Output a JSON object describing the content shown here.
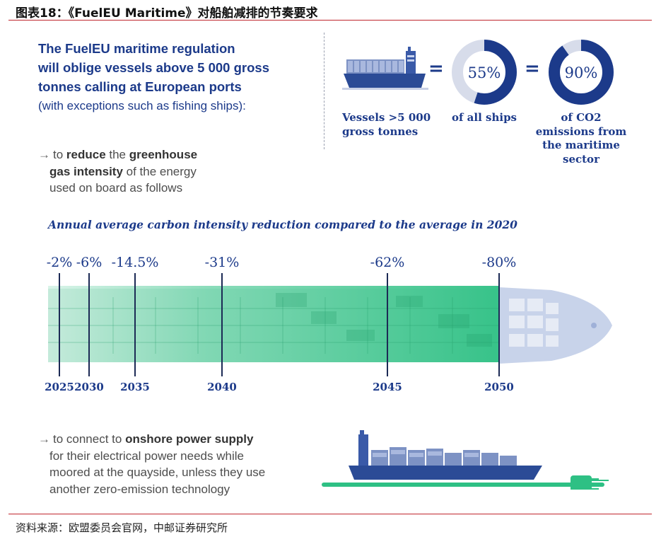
{
  "figure_title": "图表18：《FuelEU Maritime》对船舶减排的节奏要求",
  "intro": {
    "line1": "The FuelEU maritime regulation",
    "line2": "will oblige vessels above 5 000 gross",
    "line3": "tonnes calling at European ports",
    "line4": "(with exceptions such as fishing ships):"
  },
  "bullet1": {
    "arrow": "→",
    "pre": "to ",
    "bold1": "reduce",
    "mid": " the ",
    "bold2": "greenhouse",
    "bold3": "gas intensity",
    "post": " of the energy",
    "line3": "used on board as follows"
  },
  "stats": {
    "equals": "=",
    "vessels_caption": [
      "Vessels  >5 000",
      "gross tonnes"
    ],
    "ships_ring": {
      "label": "55%",
      "value": 55,
      "caption": "of all ships"
    },
    "emissions_ring": {
      "label": "90%",
      "value": 90,
      "caption": [
        "of CO2",
        "emissions from",
        "the maritime",
        "sector"
      ]
    }
  },
  "timeline": {
    "subtitle": "Annual average carbon intensity reduction compared to the average in 2020",
    "milestones": [
      {
        "year": "2025",
        "reduction": "-2%"
      },
      {
        "year": "2030",
        "reduction": "-6%"
      },
      {
        "year": "2035",
        "reduction": "-14.5%"
      },
      {
        "year": "2040",
        "reduction": "-31%"
      },
      {
        "year": "2045",
        "reduction": "-62%"
      },
      {
        "year": "2050",
        "reduction": "-80%"
      }
    ]
  },
  "bullet2": {
    "arrow": "→",
    "pre": "to connect to ",
    "bold": "onshore power supply",
    "line2": "for their electrical power needs while",
    "line3": "moored at the quayside, unless they use",
    "line4": "another zero-emission technology"
  },
  "source": "资料来源：欧盟委员会官网，中邮证券研究所",
  "colors": {
    "navy": "#1c3a8a",
    "green": "#2ec084",
    "rule_red": "#c0262d"
  }
}
